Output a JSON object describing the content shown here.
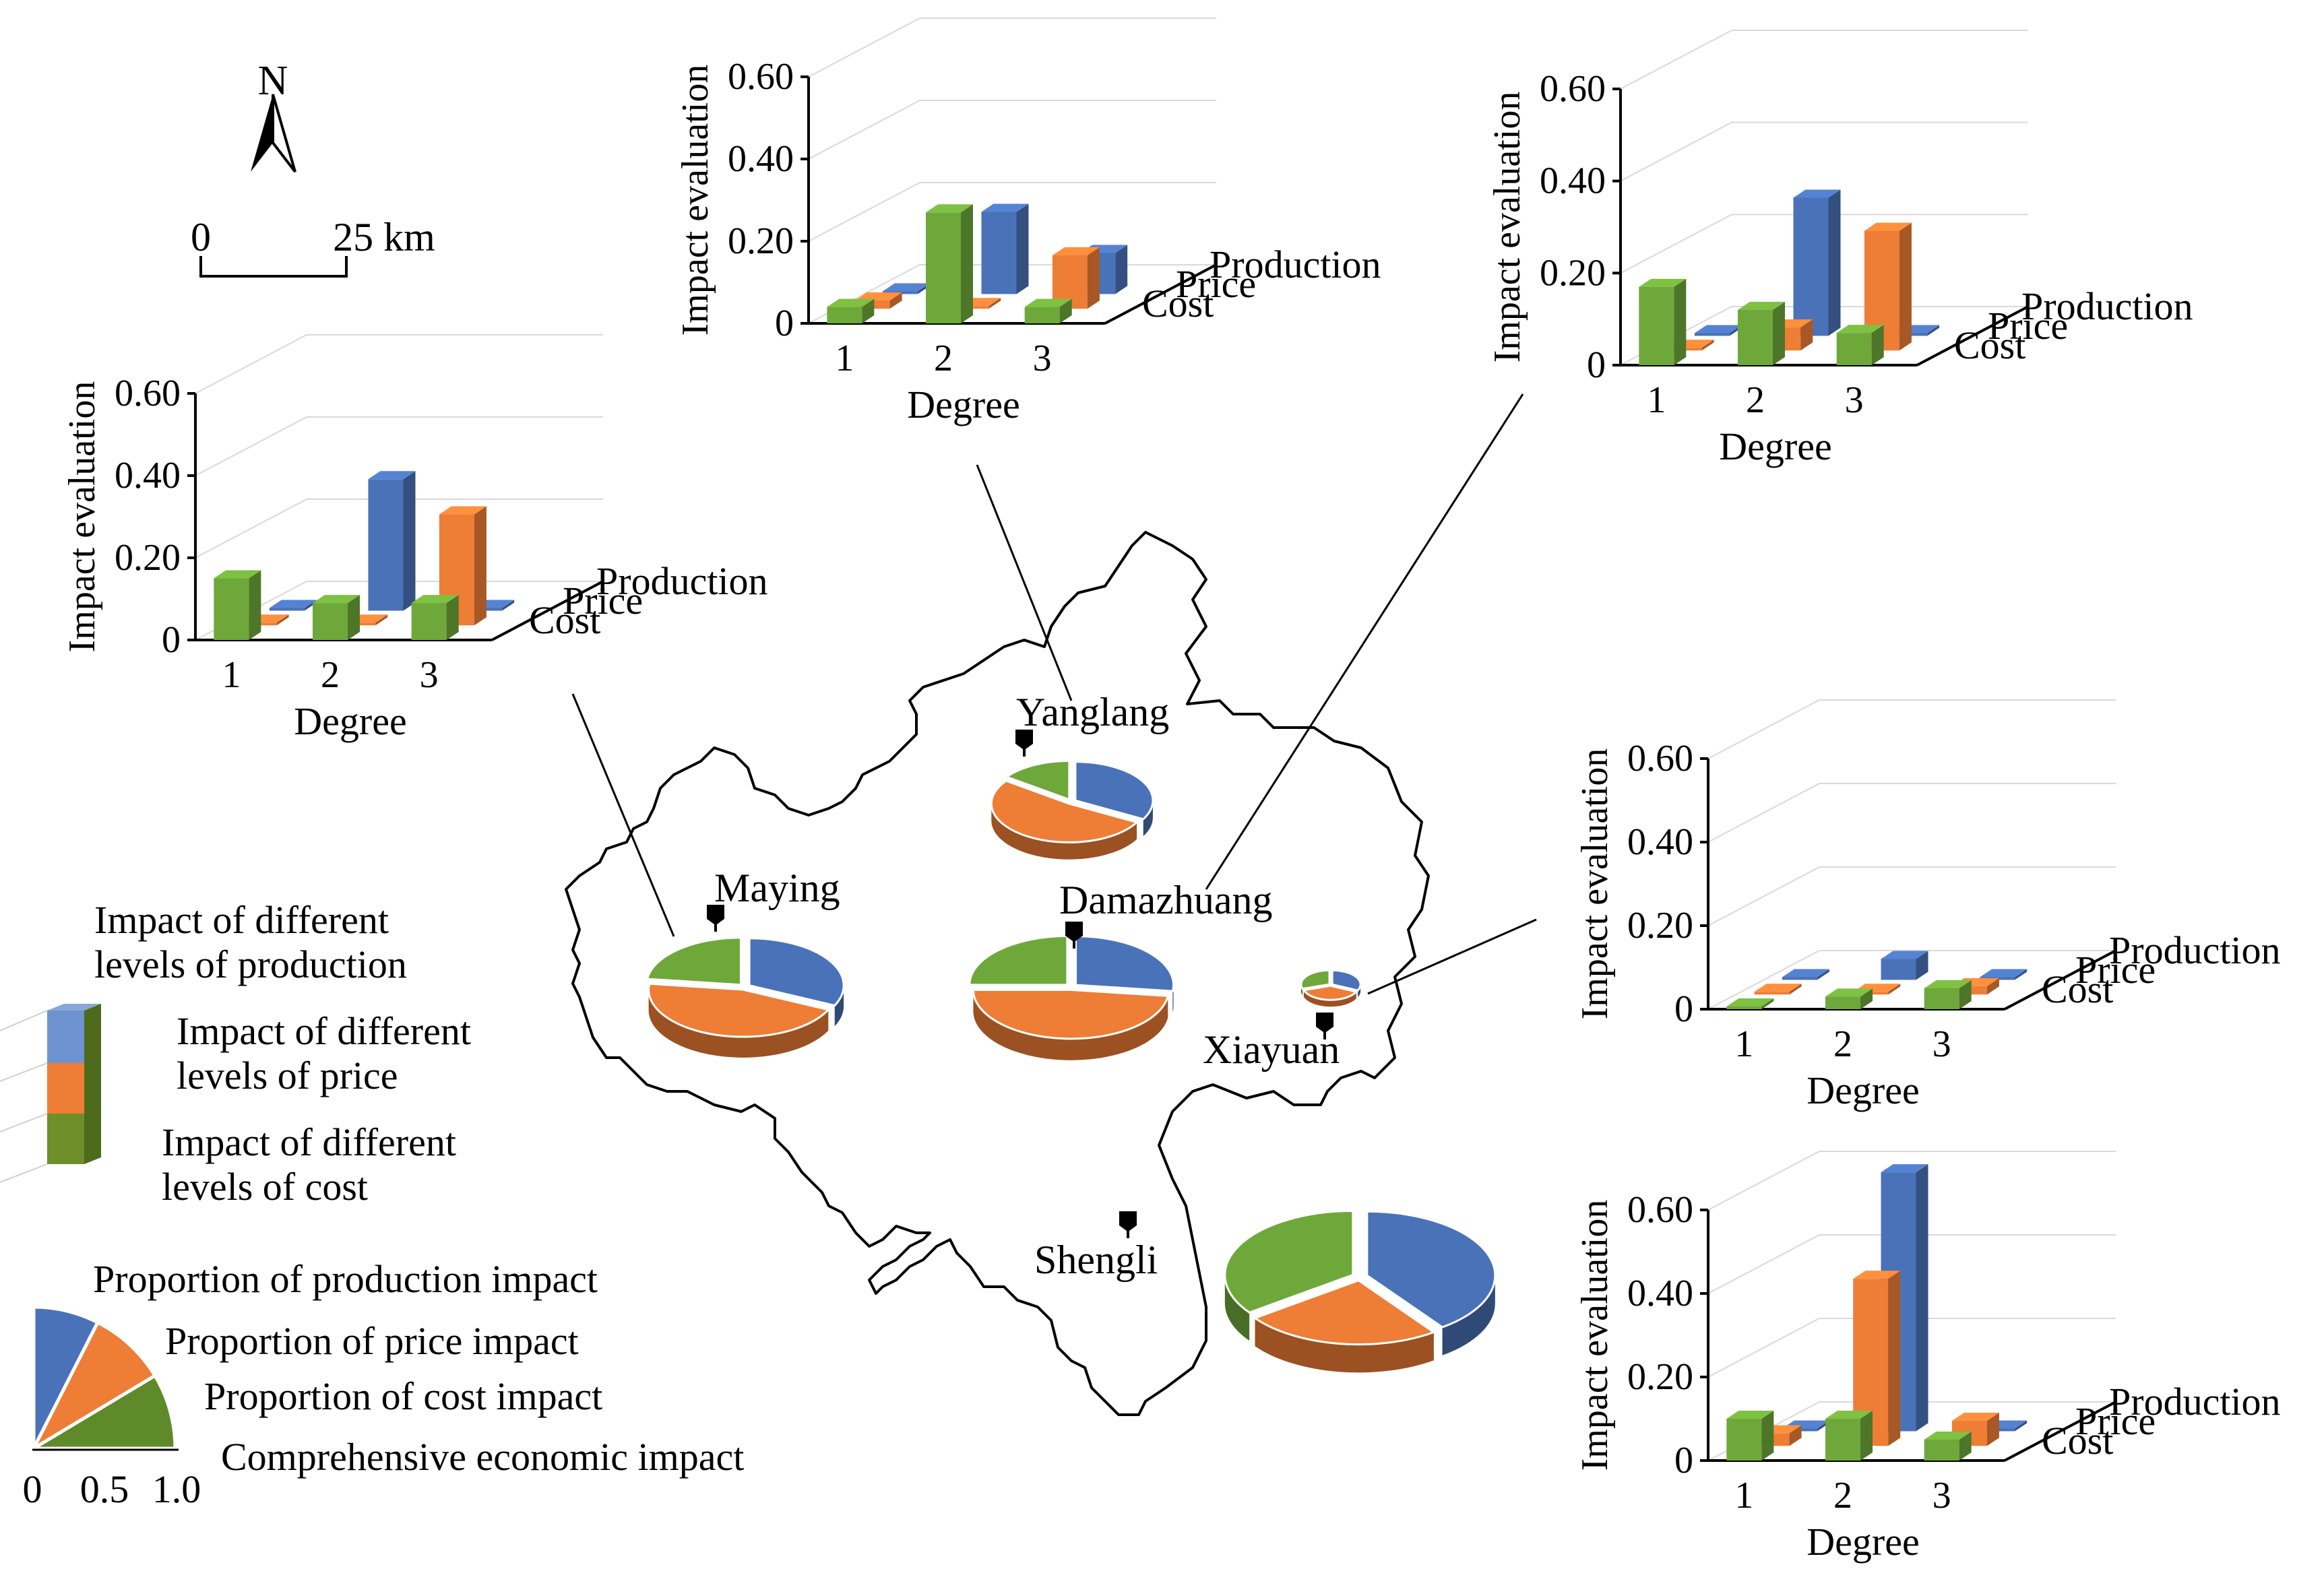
{
  "colors": {
    "production": "#4a72b8",
    "price": "#ee7d35",
    "cost": "#6ea83a"
  },
  "north_label": "N",
  "scale_bar": {
    "start": "0",
    "end": "25 km"
  },
  "places": [
    {
      "key": "yanglang",
      "name": "Yanglang"
    },
    {
      "key": "maying",
      "name": "Maying"
    },
    {
      "key": "damazhuang",
      "name": "Damazhuang"
    },
    {
      "key": "xiayuan",
      "name": "Xiayuan"
    },
    {
      "key": "shengli",
      "name": "Shengli"
    }
  ],
  "legend": {
    "production": "Impact of different levels of production",
    "price": "Impact of different levels of price",
    "cost": "Impact of different levels of cost",
    "pie_production": "Proportion of production impact",
    "pie_price": "Proportion of price impact",
    "pie_cost": "Proportion of cost impact",
    "pie_total": "Comprehensive economic impact",
    "scale_ticks": [
      "0",
      "0.5",
      "1.0"
    ]
  },
  "chart_data": [
    {
      "type": "bar3d",
      "place": "Yanglang",
      "ylabel": "Impact evaluation",
      "xlabel": "Degree",
      "categories": [
        "1",
        "2",
        "3"
      ],
      "depth_labels": [
        "Production",
        "Price",
        "Cost"
      ],
      "y_ticks": [
        "0",
        "0.20",
        "0.40",
        "0.60"
      ],
      "ylim": [
        0,
        0.6
      ],
      "series": [
        {
          "name": "Production",
          "values": [
            0.0,
            0.2,
            0.1
          ]
        },
        {
          "name": "Price",
          "values": [
            0.02,
            0.0,
            0.13
          ]
        },
        {
          "name": "Cost",
          "values": [
            0.04,
            0.27,
            0.04
          ]
        }
      ]
    },
    {
      "type": "bar3d",
      "place": "Damazhuang",
      "ylabel": "Impact evaluation",
      "xlabel": "Degree",
      "categories": [
        "1",
        "2",
        "3"
      ],
      "depth_labels": [
        "Production",
        "Price",
        "Cost"
      ],
      "y_ticks": [
        "0",
        "0.20",
        "0.40",
        "0.60"
      ],
      "ylim": [
        0,
        0.6
      ],
      "series": [
        {
          "name": "Production",
          "values": [
            0.0,
            0.3,
            0.0
          ]
        },
        {
          "name": "Price",
          "values": [
            0.0,
            0.05,
            0.26
          ]
        },
        {
          "name": "Cost",
          "values": [
            0.17,
            0.12,
            0.07
          ]
        }
      ]
    },
    {
      "type": "bar3d",
      "place": "Maying",
      "ylabel": "Impact evaluation",
      "xlabel": "Degree",
      "categories": [
        "1",
        "2",
        "3"
      ],
      "depth_labels": [
        "Production",
        "Price",
        "Cost"
      ],
      "y_ticks": [
        "0",
        "0.20",
        "0.40",
        "0.60"
      ],
      "ylim": [
        0,
        0.6
      ],
      "series": [
        {
          "name": "Production",
          "values": [
            0.0,
            0.32,
            0.0
          ]
        },
        {
          "name": "Price",
          "values": [
            0.0,
            0.0,
            0.27
          ]
        },
        {
          "name": "Cost",
          "values": [
            0.15,
            0.09,
            0.09
          ]
        }
      ]
    },
    {
      "type": "bar3d",
      "place": "Xiayuan",
      "ylabel": "Impact evaluation",
      "xlabel": "Degree",
      "categories": [
        "1",
        "2",
        "3"
      ],
      "depth_labels": [
        "Production",
        "Price",
        "Cost"
      ],
      "y_ticks": [
        "0",
        "0.20",
        "0.40",
        "0.60"
      ],
      "ylim": [
        0,
        0.6
      ],
      "series": [
        {
          "name": "Production",
          "values": [
            0.0,
            0.05,
            0.0
          ]
        },
        {
          "name": "Price",
          "values": [
            0.0,
            0.0,
            0.02
          ]
        },
        {
          "name": "Cost",
          "values": [
            0.0,
            0.03,
            0.05
          ]
        }
      ]
    },
    {
      "type": "bar3d",
      "place": "Shengli",
      "ylabel": "Impact evaluation",
      "xlabel": "Degree",
      "categories": [
        "1",
        "2",
        "3"
      ],
      "depth_labels": [
        "Production",
        "Price",
        "Cost"
      ],
      "y_ticks": [
        "0",
        "0.20",
        "0.40",
        "0.60"
      ],
      "ylim": [
        0,
        0.6
      ],
      "series": [
        {
          "name": "Production",
          "values": [
            0.0,
            0.62,
            0.0
          ]
        },
        {
          "name": "Price",
          "values": [
            0.03,
            0.4,
            0.06
          ]
        },
        {
          "name": "Cost",
          "values": [
            0.1,
            0.1,
            0.05
          ]
        }
      ]
    },
    {
      "type": "pie",
      "place": "Yanglang",
      "comprehensive_impact": 0.5,
      "slices": [
        {
          "name": "Production",
          "value": 0.33
        },
        {
          "name": "Price",
          "value": 0.52
        },
        {
          "name": "Cost",
          "value": 0.15
        }
      ]
    },
    {
      "type": "pie",
      "place": "Maying",
      "comprehensive_impact": 0.62,
      "slices": [
        {
          "name": "Production",
          "value": 0.32
        },
        {
          "name": "Price",
          "value": 0.45
        },
        {
          "name": "Cost",
          "value": 0.23
        }
      ]
    },
    {
      "type": "pie",
      "place": "Damazhuang",
      "comprehensive_impact": 0.62,
      "slices": [
        {
          "name": "Production",
          "value": 0.27
        },
        {
          "name": "Price",
          "value": 0.48
        },
        {
          "name": "Cost",
          "value": 0.25
        }
      ]
    },
    {
      "type": "pie",
      "place": "Xiayuan",
      "comprehensive_impact": 0.2,
      "slices": [
        {
          "name": "Production",
          "value": 0.32
        },
        {
          "name": "Price",
          "value": 0.38
        },
        {
          "name": "Cost",
          "value": 0.3
        }
      ]
    },
    {
      "type": "pie",
      "place": "Shengli",
      "comprehensive_impact": 1.0,
      "slices": [
        {
          "name": "Production",
          "value": 0.4
        },
        {
          "name": "Price",
          "value": 0.25
        },
        {
          "name": "Cost",
          "value": 0.35
        }
      ]
    }
  ]
}
